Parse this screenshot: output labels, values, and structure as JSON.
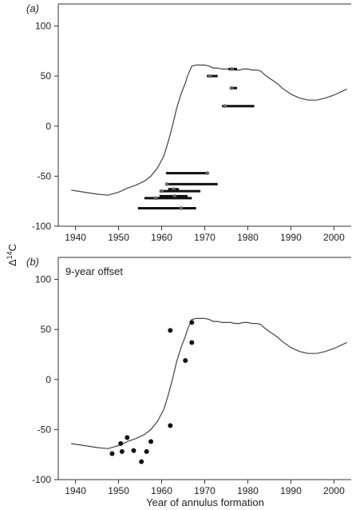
{
  "figure": {
    "ylabel": "Δ14C",
    "xlabel": "Year of annulus formation"
  },
  "chart_data": [
    {
      "type": "line",
      "panel_label": "(a)",
      "annotation": "",
      "xlim": [
        1936,
        2004
      ],
      "ylim": [
        -100,
        122
      ],
      "x_ticks": [
        1940,
        1950,
        1960,
        1970,
        1980,
        1990,
        2000
      ],
      "y_ticks": [
        -100,
        -50,
        0,
        50,
        100
      ],
      "grid": false,
      "series": [
        {
          "type": "line",
          "x": [
            1939,
            1942,
            1945,
            1947.5,
            1950,
            1952,
            1954,
            1956,
            1957.5,
            1959,
            1960.5,
            1961.5,
            1962.5,
            1963.5,
            1964.5,
            1965.5,
            1966,
            1967,
            1968,
            1969,
            1970,
            1971,
            1972,
            1973,
            1974,
            1975,
            1976,
            1977,
            1978,
            1979,
            1980,
            1981,
            1982,
            1983,
            1984,
            1985,
            1986,
            1987,
            1988,
            1990,
            1992,
            1994,
            1996,
            1998,
            2000,
            2003
          ],
          "y": [
            -64,
            -66,
            -68,
            -69,
            -66,
            -62,
            -59,
            -55,
            -50,
            -42,
            -30,
            -16,
            0,
            18,
            32,
            43,
            50,
            60,
            61,
            61,
            61,
            60,
            58,
            58,
            57,
            57,
            57,
            56,
            56,
            57,
            57,
            56,
            56,
            55,
            51,
            48,
            45,
            42,
            38,
            32,
            28,
            26,
            26,
            28,
            31,
            37
          ]
        },
        {
          "type": "error_bar",
          "bars": [
            {
              "y": 57,
              "x_start": 1975.5,
              "x_end": 1977.5,
              "x_point": 1976.3
            },
            {
              "y": 50,
              "x_start": 1970.5,
              "x_end": 1973,
              "x_point": 1971.2
            },
            {
              "y": 38,
              "x_start": 1975.8,
              "x_end": 1977.5,
              "x_point": 1976.2
            },
            {
              "y": 20,
              "x_start": 1974,
              "x_end": 1981.5,
              "x_point": 1974.7
            },
            {
              "y": -47,
              "x_start": 1961,
              "x_end": 1971,
              "x_point": 1970.6
            },
            {
              "y": -58,
              "x_start": 1961,
              "x_end": 1973,
              "x_point": 1961.2
            },
            {
              "y": -63,
              "x_start": 1961.5,
              "x_end": 1964,
              "x_point": 1962.8
            },
            {
              "y": -65,
              "x_start": 1959.5,
              "x_end": 1969,
              "x_point": 1960
            },
            {
              "y": -70,
              "x_start": 1959.5,
              "x_end": 1966,
              "x_point": 1963
            },
            {
              "y": -72,
              "x_start": 1956,
              "x_end": 1967,
              "x_point": 1958.6
            },
            {
              "y": -82,
              "x_start": 1954.5,
              "x_end": 1968,
              "x_point": 1964.5
            }
          ]
        }
      ]
    },
    {
      "type": "scatter",
      "panel_label": "(b)",
      "annotation": "9-year offset",
      "xlim": [
        1936,
        2004
      ],
      "ylim": [
        -100,
        122
      ],
      "x_ticks": [
        1940,
        1950,
        1960,
        1970,
        1980,
        1990,
        2000
      ],
      "y_ticks": [
        -100,
        -50,
        0,
        50,
        100
      ],
      "grid": false,
      "series": [
        {
          "type": "line",
          "x": [
            1939,
            1942,
            1945,
            1947.5,
            1950,
            1952,
            1954,
            1956,
            1957.5,
            1959,
            1960.5,
            1961.5,
            1962.5,
            1963.5,
            1964.5,
            1965.5,
            1966,
            1967,
            1968,
            1969,
            1970,
            1971,
            1972,
            1973,
            1974,
            1975,
            1976,
            1977,
            1978,
            1979,
            1980,
            1981,
            1982,
            1983,
            1984,
            1985,
            1986,
            1987,
            1988,
            1990,
            1992,
            1994,
            1996,
            1998,
            2000,
            2003
          ],
          "y": [
            -64,
            -66,
            -68,
            -69,
            -66,
            -62,
            -59,
            -55,
            -50,
            -42,
            -30,
            -16,
            0,
            18,
            32,
            43,
            50,
            60,
            61,
            61,
            61,
            60,
            58,
            58,
            57,
            57,
            57,
            56,
            56,
            57,
            57,
            56,
            56,
            55,
            51,
            48,
            45,
            42,
            38,
            32,
            28,
            26,
            26,
            28,
            31,
            37
          ]
        },
        {
          "type": "scatter",
          "x": [
            1948.5,
            1950.5,
            1950.8,
            1952,
            1953.5,
            1955.3,
            1956.5,
            1957.5,
            1962,
            1962,
            1965.5,
            1967,
            1967
          ],
          "y": [
            -74,
            -64,
            -72,
            -58,
            -71,
            -82,
            -72,
            -62,
            -46,
            49,
            19,
            37,
            57
          ]
        }
      ]
    }
  ]
}
